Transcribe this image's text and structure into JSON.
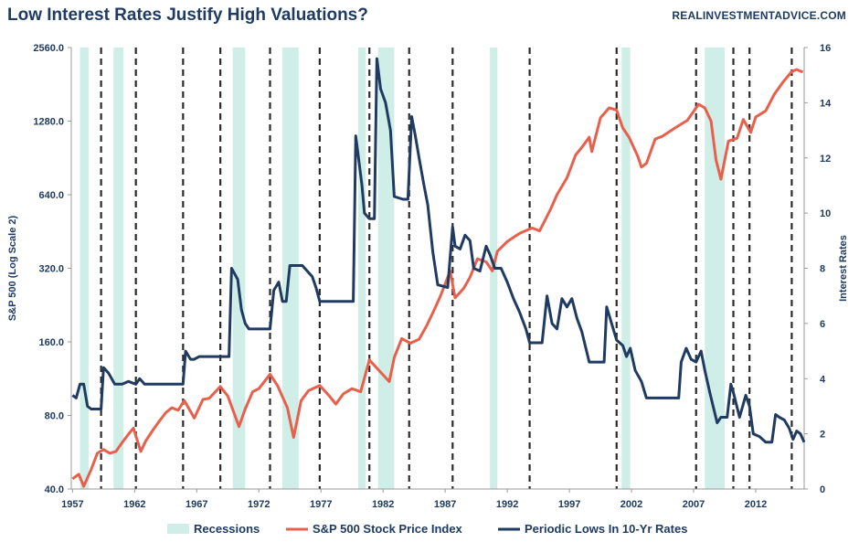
{
  "header": {
    "title": "Low Interest Rates Justify High Valuations?",
    "source": "REALINVESTMENTADVICE.COM"
  },
  "colors": {
    "sp500": "#e8604c",
    "rates": "#1f3b61",
    "recession": "#cfeee7",
    "marker": "#2b2b2b",
    "text": "#1f3b61"
  },
  "chart_data": {
    "type": "line",
    "title": "Low Interest Rates Justify High Valuations?",
    "x_range": [
      1956.9,
      2015.9
    ],
    "x_ticks": [
      1957,
      1962,
      1967,
      1972,
      1977,
      1982,
      1987,
      1992,
      1997,
      2002,
      2007,
      2012
    ],
    "y_left": {
      "label": "S&P 500 (Log Scale 2)",
      "scale": "log2",
      "range": [
        40,
        2560
      ],
      "ticks": [
        "40.0",
        "80.0",
        "160.0",
        "320.0",
        "640.0",
        "1280.0",
        "2560.0"
      ]
    },
    "y_right": {
      "label": "Interest Rates",
      "range": [
        0,
        16
      ],
      "ticks": [
        "0",
        "2",
        "4",
        "6",
        "8",
        "10",
        "12",
        "14",
        "16"
      ]
    },
    "legend": {
      "position": "bottom",
      "entries": [
        "Recessions",
        "S&P 500 Stock Price Index",
        "Periodic Lows In 10-Yr Rates"
      ]
    },
    "recessions": [
      [
        1957.6,
        1958.3
      ],
      [
        1960.3,
        1961.1
      ],
      [
        1969.9,
        1970.9
      ],
      [
        1973.9,
        1975.2
      ],
      [
        1980.0,
        1980.6
      ],
      [
        1981.6,
        1982.9
      ],
      [
        1990.6,
        1991.2
      ],
      [
        2001.2,
        2001.9
      ],
      [
        2007.9,
        2009.5
      ]
    ],
    "markers": [
      1959.3,
      1962.1,
      1965.9,
      1968.9,
      1972.9,
      1976.9,
      1980.9,
      1984.1,
      1987.6,
      1993.8,
      2000.8,
      2007.2,
      2010.2,
      2011.5,
      2014.9
    ],
    "series": [
      {
        "name": "S&P 500 Stock Price Index",
        "axis": "left",
        "points": [
          [
            1957.0,
            44
          ],
          [
            1957.5,
            46
          ],
          [
            1957.9,
            41
          ],
          [
            1958.5,
            48
          ],
          [
            1959.0,
            56
          ],
          [
            1959.5,
            58
          ],
          [
            1960.0,
            56
          ],
          [
            1960.5,
            57
          ],
          [
            1961.0,
            62
          ],
          [
            1961.5,
            67
          ],
          [
            1961.9,
            71
          ],
          [
            1962.5,
            57
          ],
          [
            1962.9,
            63
          ],
          [
            1963.5,
            70
          ],
          [
            1964.0,
            76
          ],
          [
            1964.5,
            82
          ],
          [
            1965.0,
            86
          ],
          [
            1965.5,
            84
          ],
          [
            1966.0,
            92
          ],
          [
            1966.8,
            78
          ],
          [
            1967.5,
            93
          ],
          [
            1968.0,
            94
          ],
          [
            1968.9,
            105
          ],
          [
            1969.5,
            96
          ],
          [
            1970.4,
            72
          ],
          [
            1970.9,
            85
          ],
          [
            1971.5,
            100
          ],
          [
            1972.0,
            103
          ],
          [
            1972.9,
            118
          ],
          [
            1973.5,
            106
          ],
          [
            1974.3,
            86
          ],
          [
            1974.8,
            65
          ],
          [
            1975.4,
            92
          ],
          [
            1976.0,
            101
          ],
          [
            1976.9,
            106
          ],
          [
            1977.6,
            97
          ],
          [
            1978.2,
            89
          ],
          [
            1978.8,
            98
          ],
          [
            1979.5,
            103
          ],
          [
            1980.2,
            100
          ],
          [
            1980.9,
            135
          ],
          [
            1981.5,
            125
          ],
          [
            1982.5,
            110
          ],
          [
            1982.9,
            138
          ],
          [
            1983.5,
            165
          ],
          [
            1984.2,
            158
          ],
          [
            1984.9,
            164
          ],
          [
            1985.5,
            186
          ],
          [
            1986.0,
            210
          ],
          [
            1986.6,
            245
          ],
          [
            1987.4,
            312
          ],
          [
            1987.8,
            242
          ],
          [
            1988.5,
            265
          ],
          [
            1989.0,
            294
          ],
          [
            1989.6,
            350
          ],
          [
            1990.3,
            340
          ],
          [
            1990.8,
            312
          ],
          [
            1991.2,
            375
          ],
          [
            1992.0,
            412
          ],
          [
            1993.0,
            445
          ],
          [
            1994.0,
            468
          ],
          [
            1994.6,
            455
          ],
          [
            1995.5,
            560
          ],
          [
            1996.0,
            640
          ],
          [
            1996.8,
            750
          ],
          [
            1997.5,
            930
          ],
          [
            1998.0,
            1000
          ],
          [
            1998.6,
            1100
          ],
          [
            1998.8,
            960
          ],
          [
            1999.5,
            1320
          ],
          [
            2000.2,
            1450
          ],
          [
            2000.8,
            1420
          ],
          [
            2001.3,
            1200
          ],
          [
            2001.8,
            1100
          ],
          [
            2002.5,
            920
          ],
          [
            2002.8,
            830
          ],
          [
            2003.2,
            860
          ],
          [
            2003.9,
            1080
          ],
          [
            2004.5,
            1110
          ],
          [
            2005.5,
            1200
          ],
          [
            2006.5,
            1290
          ],
          [
            2007.4,
            1500
          ],
          [
            2007.9,
            1450
          ],
          [
            2008.4,
            1280
          ],
          [
            2008.8,
            890
          ],
          [
            2009.2,
            740
          ],
          [
            2009.8,
            1060
          ],
          [
            2010.5,
            1090
          ],
          [
            2011.0,
            1300
          ],
          [
            2011.6,
            1150
          ],
          [
            2012.0,
            1330
          ],
          [
            2012.8,
            1410
          ],
          [
            2013.5,
            1650
          ],
          [
            2014.2,
            1850
          ],
          [
            2014.9,
            2040
          ],
          [
            2015.3,
            2080
          ],
          [
            2015.8,
            2030
          ]
        ]
      },
      {
        "name": "Periodic Lows In 10-Yr Rates",
        "axis": "right",
        "points": [
          [
            1957.0,
            3.4
          ],
          [
            1957.3,
            3.3
          ],
          [
            1957.6,
            3.8
          ],
          [
            1957.9,
            3.8
          ],
          [
            1958.2,
            3.0
          ],
          [
            1958.5,
            2.9
          ],
          [
            1959.3,
            2.9
          ],
          [
            1959.5,
            4.4
          ],
          [
            1959.9,
            4.2
          ],
          [
            1960.4,
            3.8
          ],
          [
            1961.0,
            3.8
          ],
          [
            1961.5,
            3.9
          ],
          [
            1962.1,
            3.8
          ],
          [
            1962.4,
            4.0
          ],
          [
            1962.8,
            3.8
          ],
          [
            1965.9,
            3.8
          ],
          [
            1966.1,
            5.0
          ],
          [
            1966.5,
            4.7
          ],
          [
            1966.8,
            4.7
          ],
          [
            1967.2,
            4.8
          ],
          [
            1968.9,
            4.8
          ],
          [
            1969.6,
            4.8
          ],
          [
            1969.8,
            8.0
          ],
          [
            1970.3,
            7.6
          ],
          [
            1970.6,
            6.5
          ],
          [
            1970.9,
            6.0
          ],
          [
            1971.2,
            5.8
          ],
          [
            1972.9,
            5.8
          ],
          [
            1973.2,
            7.2
          ],
          [
            1973.6,
            7.5
          ],
          [
            1973.9,
            6.8
          ],
          [
            1974.2,
            6.8
          ],
          [
            1974.5,
            8.1
          ],
          [
            1975.5,
            8.1
          ],
          [
            1976.3,
            7.7
          ],
          [
            1976.6,
            7.3
          ],
          [
            1976.9,
            6.8
          ],
          [
            1979.6,
            6.8
          ],
          [
            1979.8,
            12.8
          ],
          [
            1980.3,
            11.0
          ],
          [
            1980.5,
            10.0
          ],
          [
            1980.9,
            9.8
          ],
          [
            1981.3,
            9.8
          ],
          [
            1981.5,
            15.6
          ],
          [
            1981.8,
            14.5
          ],
          [
            1982.2,
            14.0
          ],
          [
            1982.6,
            13.0
          ],
          [
            1982.9,
            10.6
          ],
          [
            1983.6,
            10.5
          ],
          [
            1984.0,
            10.5
          ],
          [
            1984.3,
            13.5
          ],
          [
            1984.6,
            12.8
          ],
          [
            1984.9,
            12.0
          ],
          [
            1985.3,
            11.0
          ],
          [
            1985.6,
            10.3
          ],
          [
            1986.0,
            8.6
          ],
          [
            1986.4,
            7.4
          ],
          [
            1987.2,
            7.3
          ],
          [
            1987.6,
            9.5
          ],
          [
            1987.8,
            8.8
          ],
          [
            1988.2,
            8.7
          ],
          [
            1988.6,
            9.2
          ],
          [
            1989.0,
            9.0
          ],
          [
            1989.3,
            8.0
          ],
          [
            1989.8,
            7.9
          ],
          [
            1990.3,
            8.8
          ],
          [
            1990.6,
            8.5
          ],
          [
            1991.0,
            8.0
          ],
          [
            1991.5,
            8.0
          ],
          [
            1992.0,
            7.5
          ],
          [
            1992.5,
            6.9
          ],
          [
            1993.0,
            6.4
          ],
          [
            1993.5,
            5.8
          ],
          [
            1993.8,
            5.3
          ],
          [
            1994.8,
            5.3
          ],
          [
            1995.2,
            7.0
          ],
          [
            1995.6,
            6.0
          ],
          [
            1996.0,
            5.8
          ],
          [
            1996.4,
            6.9
          ],
          [
            1996.8,
            6.6
          ],
          [
            1997.2,
            6.9
          ],
          [
            1997.6,
            6.2
          ],
          [
            1998.0,
            5.7
          ],
          [
            1998.6,
            4.6
          ],
          [
            1999.8,
            4.6
          ],
          [
            2000.0,
            6.6
          ],
          [
            2000.4,
            6.0
          ],
          [
            2000.8,
            5.4
          ],
          [
            2001.3,
            5.2
          ],
          [
            2001.6,
            4.8
          ],
          [
            2001.9,
            5.1
          ],
          [
            2002.3,
            4.3
          ],
          [
            2002.8,
            3.9
          ],
          [
            2003.2,
            3.3
          ],
          [
            2005.8,
            3.3
          ],
          [
            2006.0,
            4.6
          ],
          [
            2006.4,
            5.1
          ],
          [
            2006.8,
            4.7
          ],
          [
            2007.2,
            4.6
          ],
          [
            2007.6,
            5.0
          ],
          [
            2007.9,
            4.3
          ],
          [
            2008.3,
            3.5
          ],
          [
            2008.9,
            2.4
          ],
          [
            2009.2,
            2.6
          ],
          [
            2009.7,
            2.6
          ],
          [
            2010.0,
            3.8
          ],
          [
            2010.2,
            3.5
          ],
          [
            2010.7,
            2.6
          ],
          [
            2011.2,
            3.4
          ],
          [
            2011.5,
            3.0
          ],
          [
            2011.8,
            2.0
          ],
          [
            2012.3,
            1.9
          ],
          [
            2012.8,
            1.7
          ],
          [
            2013.3,
            1.7
          ],
          [
            2013.6,
            2.7
          ],
          [
            2013.9,
            2.6
          ],
          [
            2014.3,
            2.5
          ],
          [
            2014.7,
            2.2
          ],
          [
            2015.0,
            1.8
          ],
          [
            2015.3,
            2.1
          ],
          [
            2015.6,
            2.0
          ],
          [
            2015.9,
            1.7
          ]
        ]
      }
    ]
  }
}
